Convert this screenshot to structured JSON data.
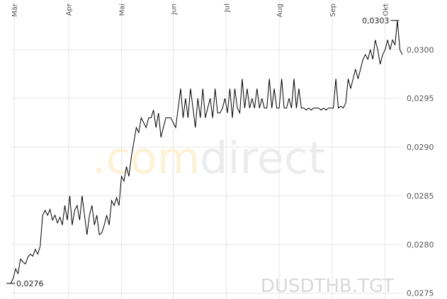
{
  "chart_data": {
    "type": "line",
    "symbol": "DUSDTHB.TGT",
    "watermark_prefix": ".com",
    "watermark_suffix": "direct",
    "values": [
      0.0276,
      0.02765,
      0.02775,
      0.0277,
      0.02785,
      0.02782,
      0.0278,
      0.02787,
      0.0279,
      0.02788,
      0.02795,
      0.0279,
      0.02798,
      0.0283,
      0.02835,
      0.0283,
      0.02836,
      0.02825,
      0.0283,
      0.02822,
      0.02828,
      0.0282,
      0.0284,
      0.02825,
      0.0285,
      0.0282,
      0.02835,
      0.0284,
      0.02825,
      0.0285,
      0.0283,
      0.0281,
      0.0283,
      0.0284,
      0.0282,
      0.0283,
      0.0281,
      0.02812,
      0.0282,
      0.0283,
      0.0282,
      0.02845,
      0.0284,
      0.02848,
      0.0284,
      0.0287,
      0.02865,
      0.0288,
      0.0287,
      0.0289,
      0.02905,
      0.0292,
      0.02915,
      0.0293,
      0.02925,
      0.0292,
      0.0293,
      0.0293,
      0.02938,
      0.0292,
      0.02935,
      0.0291,
      0.0292,
      0.0293,
      0.0293,
      0.0293,
      0.02925,
      0.0292,
      0.0294,
      0.0296,
      0.0293,
      0.0295,
      0.0293,
      0.0296,
      0.0294,
      0.0292,
      0.0295,
      0.0293,
      0.0296,
      0.0293,
      0.0294,
      0.0295,
      0.0293,
      0.0296,
      0.02935,
      0.02935,
      0.0294,
      0.0295,
      0.02935,
      0.0296,
      0.0293,
      0.0296,
      0.0294,
      0.02935,
      0.0297,
      0.0294,
      0.0296,
      0.0294,
      0.0295,
      0.0294,
      0.0296,
      0.0294,
      0.0295,
      0.0294,
      0.0294,
      0.0297,
      0.0294,
      0.0296,
      0.0294,
      0.0294,
      0.0297,
      0.0294,
      0.0294,
      0.0295,
      0.0294,
      0.0297,
      0.0294,
      0.0296,
      0.0294,
      0.0294,
      0.02938,
      0.0294,
      0.02938,
      0.0294,
      0.0294,
      0.0294,
      0.02938,
      0.0294,
      0.02938,
      0.0294,
      0.0294,
      0.0294,
      0.0297,
      0.0294,
      0.02942,
      0.0294,
      0.02945,
      0.0297,
      0.0296,
      0.0297,
      0.0298,
      0.0297,
      0.0298,
      0.0299,
      0.02995,
      0.0299,
      0.03,
      0.0299,
      0.0301,
      0.03,
      0.02985,
      0.02995,
      0.03,
      0.0301,
      0.03,
      0.0301,
      0.03005,
      0.0303,
      0.03,
      0.02995
    ],
    "color": "#000000",
    "xlim": [
      0,
      159
    ],
    "xticks": [
      {
        "value": 1.5,
        "label": "Mär"
      },
      {
        "value": 23.5,
        "label": "Apr"
      },
      {
        "value": 45,
        "label": "Mai"
      },
      {
        "value": 66,
        "label": "Jun"
      },
      {
        "value": 87.5,
        "label": "Jul"
      },
      {
        "value": 109,
        "label": "Aug"
      },
      {
        "value": 130.5,
        "label": "Sep"
      },
      {
        "value": 152,
        "label": "Okt"
      }
    ],
    "ylim": [
      0.02744,
      0.03051
    ],
    "yticks": [
      {
        "value": 0.0275,
        "label": "0,0275"
      },
      {
        "value": 0.028,
        "label": "0,0280"
      },
      {
        "value": 0.0285,
        "label": "0,0285"
      },
      {
        "value": 0.029,
        "label": "0,0290"
      },
      {
        "value": 0.0295,
        "label": "0,0295"
      },
      {
        "value": 0.03,
        "label": "0,0300"
      }
    ],
    "max_label": {
      "value": 0.0303,
      "label": "0,0303",
      "x": 156
    },
    "min_label": {
      "value": 0.0276,
      "label": "0,0276",
      "x": 0
    },
    "grid": true
  }
}
